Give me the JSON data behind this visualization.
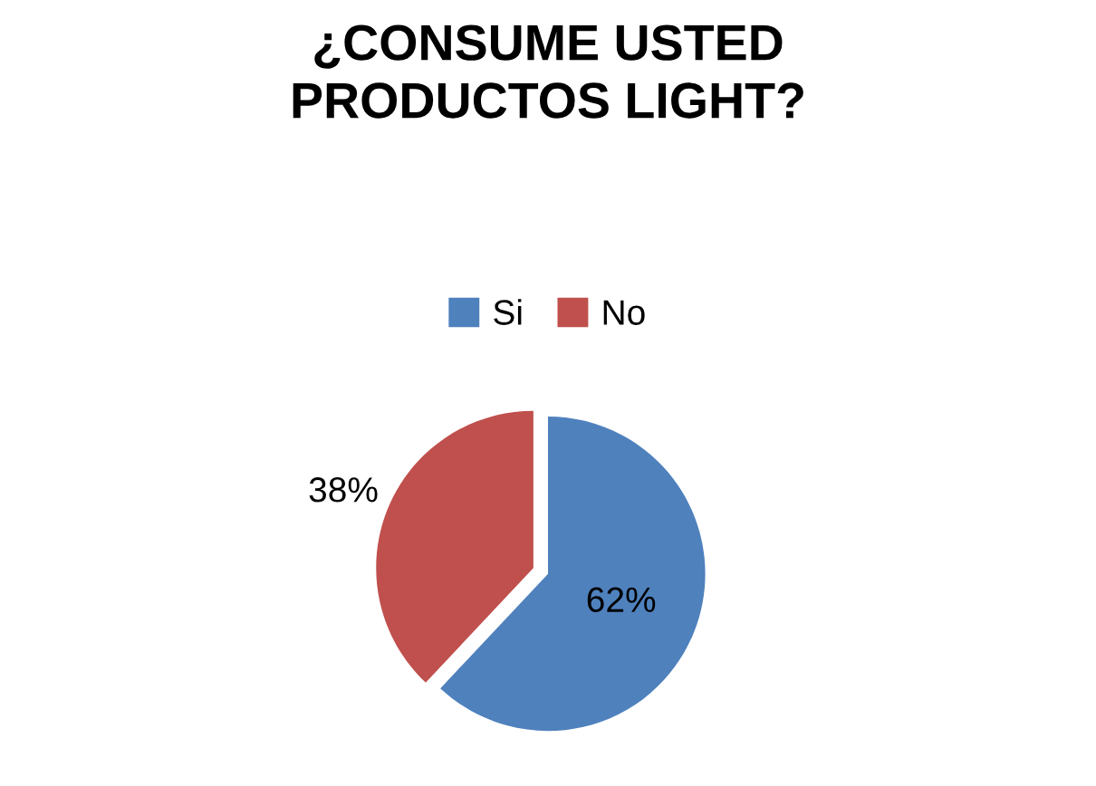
{
  "chart_data": {
    "type": "pie",
    "title": "¿CONSUME USTED\nPRODUCTOS LIGHT?",
    "categories": [
      "Si",
      "No"
    ],
    "values": [
      62,
      38
    ],
    "colors": [
      "#4f81bd",
      "#c0504d"
    ],
    "value_labels": [
      "62%",
      "38%"
    ],
    "legend": "top"
  }
}
